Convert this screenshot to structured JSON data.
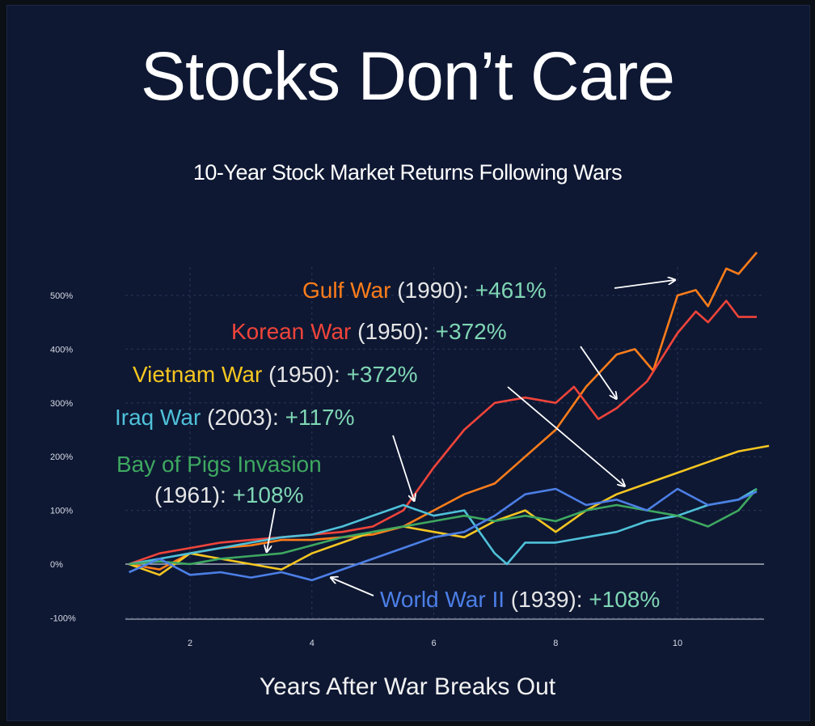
{
  "title": "Stocks Don’t Care",
  "subtitle": "10-Year Stock Market Returns Following Wars",
  "colors": {
    "background": "#0e1833",
    "gain_text": "#7fd6b4",
    "year_text": "#e6e6e6"
  },
  "chart_data": {
    "type": "line",
    "title": "Stocks Don’t Care",
    "subtitle": "10-Year Stock Market Returns Following Wars",
    "xlabel": "Years After War Breaks Out",
    "ylabel": "",
    "xlim": [
      1,
      11.5
    ],
    "ylim": [
      -100,
      600
    ],
    "xticks": [
      "2",
      "4",
      "6",
      "8",
      "10"
    ],
    "yticks": [
      "500%",
      "400%",
      "300%",
      "200%",
      "100%",
      "0%",
      "-100%"
    ],
    "grid": true,
    "series": [
      {
        "name": "Gulf War",
        "color": "#ff7d1a",
        "x": [
          1,
          1.5,
          2,
          2.5,
          3,
          3.5,
          4,
          4.5,
          5,
          5.5,
          6,
          6.5,
          7,
          7.5,
          8,
          8.5,
          9,
          9.3,
          9.6,
          10,
          10.3,
          10.5,
          10.8,
          11,
          11.3
        ],
        "y": [
          0,
          -10,
          20,
          30,
          35,
          45,
          45,
          50,
          55,
          70,
          100,
          130,
          150,
          200,
          250,
          330,
          390,
          400,
          360,
          500,
          510,
          480,
          550,
          540,
          580
        ]
      },
      {
        "name": "Korean War",
        "color": "#f0443a",
        "x": [
          1,
          1.5,
          2,
          2.5,
          3,
          3.5,
          4,
          4.5,
          5,
          5.5,
          6,
          6.5,
          7,
          7.5,
          8,
          8.3,
          8.7,
          9,
          9.5,
          10,
          10.3,
          10.5,
          10.8,
          11,
          11.3
        ],
        "y": [
          0,
          20,
          30,
          40,
          45,
          50,
          55,
          60,
          70,
          100,
          180,
          250,
          300,
          310,
          300,
          330,
          270,
          290,
          340,
          430,
          470,
          450,
          490,
          460,
          460
        ]
      },
      {
        "name": "Vietnam War",
        "color": "#f5c621",
        "x": [
          1,
          1.5,
          2,
          2.5,
          3,
          3.5,
          4,
          4.5,
          5,
          5.5,
          6,
          6.5,
          7,
          7.5,
          8,
          8.5,
          9,
          9.5,
          10,
          10.5,
          11,
          11.5
        ],
        "y": [
          0,
          -20,
          20,
          10,
          0,
          -10,
          20,
          40,
          60,
          70,
          60,
          50,
          80,
          100,
          60,
          100,
          130,
          150,
          170,
          190,
          210,
          220
        ]
      },
      {
        "name": "Iraq War",
        "color": "#4fc1d9",
        "x": [
          1,
          1.5,
          2,
          2.5,
          3,
          3.5,
          4,
          4.5,
          5,
          5.5,
          6,
          6.5,
          7,
          7.2,
          7.5,
          8,
          8.5,
          9,
          9.5,
          10,
          10.5,
          11,
          11.3
        ],
        "y": [
          0,
          10,
          20,
          30,
          40,
          50,
          55,
          70,
          90,
          110,
          90,
          100,
          20,
          0,
          40,
          40,
          50,
          60,
          80,
          90,
          110,
          120,
          140
        ]
      },
      {
        "name": "Bay of Pigs Invasion",
        "color": "#3ea860",
        "x": [
          1,
          1.5,
          2,
          2.5,
          3,
          3.5,
          4,
          4.5,
          5,
          5.5,
          6,
          6.5,
          7,
          7.5,
          8,
          8.5,
          9,
          9.5,
          10,
          10.5,
          11,
          11.3
        ],
        "y": [
          0,
          5,
          0,
          10,
          15,
          20,
          35,
          50,
          60,
          70,
          80,
          90,
          80,
          90,
          80,
          100,
          110,
          100,
          90,
          70,
          100,
          140
        ]
      },
      {
        "name": "World War II",
        "color": "#4c7fe6",
        "x": [
          1,
          1.5,
          2,
          2.5,
          3,
          3.5,
          4,
          4.5,
          5,
          5.5,
          6,
          6.5,
          7,
          7.5,
          8,
          8.5,
          9,
          9.5,
          10,
          10.5,
          11,
          11.3
        ],
        "y": [
          -15,
          10,
          -20,
          -15,
          -25,
          -15,
          -30,
          -10,
          10,
          30,
          50,
          60,
          90,
          130,
          140,
          110,
          120,
          100,
          140,
          110,
          120,
          135
        ]
      }
    ],
    "annotations": [
      {
        "name": "Gulf War",
        "year": "(1990):",
        "gain": "+461%",
        "color": "#ff7d1a"
      },
      {
        "name": "Korean War",
        "year": "(1950):",
        "gain": "+372%",
        "color": "#f0443a"
      },
      {
        "name": "Vietnam War",
        "year": "(1950):",
        "gain": "+372%",
        "color": "#f5c621"
      },
      {
        "name": "Iraq War",
        "year": "(2003):",
        "gain": "+117%",
        "color": "#4fc1d9"
      },
      {
        "name": "Bay of Pigs Invasion",
        "year": "(1961):",
        "gain": "+108%",
        "color": "#3ea860"
      },
      {
        "name": "World War II",
        "year": "(1939):",
        "gain": "+108%",
        "color": "#4c7fe6"
      }
    ]
  }
}
